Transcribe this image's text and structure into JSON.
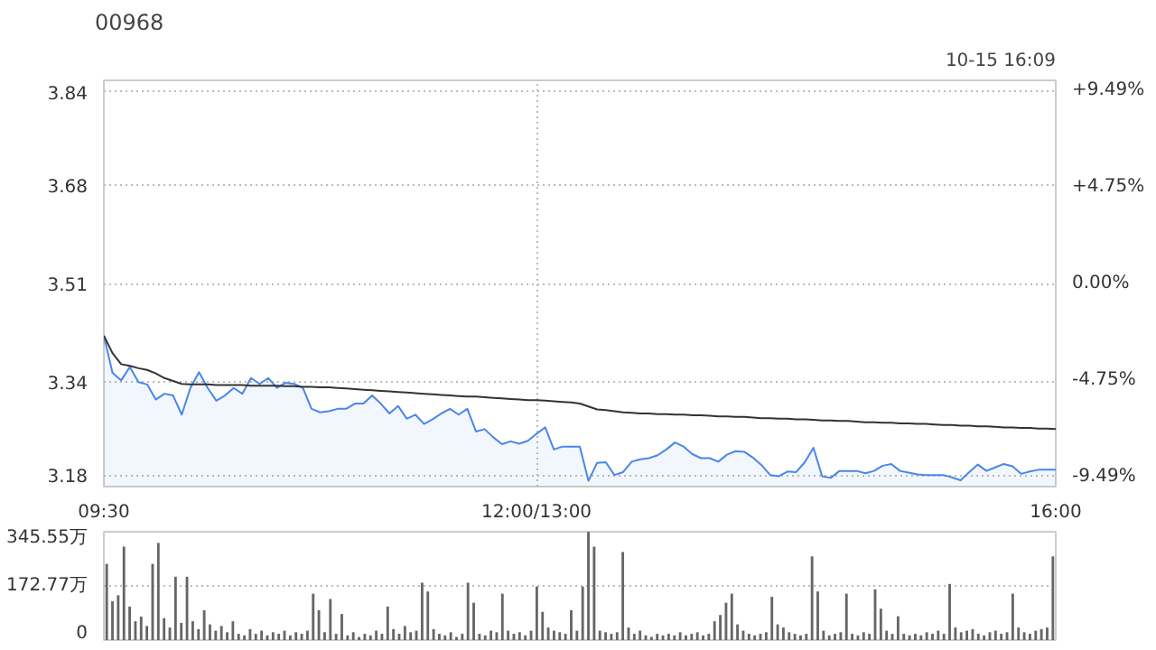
{
  "chart_data": [
    {
      "type": "line",
      "title": "00968",
      "annotations": [
        "10-15 16:09"
      ],
      "categories": [
        "09:30",
        null,
        null,
        null,
        null,
        null,
        null,
        null,
        null,
        null,
        null,
        null,
        null,
        null,
        null,
        null,
        null,
        null,
        null,
        null,
        null,
        null,
        null,
        null,
        null,
        null,
        null,
        null,
        null,
        null,
        null,
        null,
        null,
        null,
        null,
        null,
        null,
        null,
        null,
        null,
        null,
        null,
        null,
        null,
        null,
        null,
        null,
        null,
        null,
        null,
        "12:00/13:00",
        null,
        null,
        null,
        null,
        null,
        null,
        null,
        null,
        null,
        null,
        null,
        null,
        null,
        null,
        null,
        null,
        null,
        null,
        null,
        null,
        null,
        null,
        null,
        null,
        null,
        null,
        null,
        null,
        null,
        null,
        null,
        null,
        null,
        null,
        null,
        null,
        null,
        null,
        null,
        null,
        null,
        null,
        null,
        null,
        null,
        null,
        null,
        null,
        null,
        null,
        null,
        null,
        null,
        null,
        null,
        null,
        null,
        null,
        null,
        "16:00"
      ],
      "ylim": [
        3.16,
        3.86
      ],
      "yticks": [
        3.18,
        3.34,
        3.51,
        3.68,
        3.84
      ],
      "y2lim": [
        -9.97,
        9.97
      ],
      "y2ticks": [
        {
          "value": -9.49,
          "label": "-9.49%"
        },
        {
          "value": -4.75,
          "label": "-4.75%"
        },
        {
          "value": 0,
          "label": "0.00%"
        },
        {
          "value": 4.75,
          "label": "+4.75%"
        },
        {
          "value": 9.49,
          "label": "+9.49%"
        }
      ],
      "grid": true,
      "line_style": "solid",
      "series": [
        {
          "type": "area",
          "color": "#4a86e8",
          "values": [
            3.42,
            3.356,
            3.343,
            3.366,
            3.34,
            3.336,
            3.31,
            3.32,
            3.317,
            3.284,
            3.33,
            3.357,
            3.33,
            3.308,
            3.317,
            3.33,
            3.32,
            3.347,
            3.337,
            3.347,
            3.33,
            3.339,
            3.337,
            3.33,
            3.294,
            3.288,
            3.29,
            3.294,
            3.294,
            3.303,
            3.303,
            3.317,
            3.303,
            3.286,
            3.299,
            3.277,
            3.284,
            3.268,
            3.276,
            3.286,
            3.294,
            3.284,
            3.294,
            3.255,
            3.259,
            3.245,
            3.233,
            3.238,
            3.234,
            3.239,
            3.251,
            3.262,
            3.224,
            3.229,
            3.229,
            3.229,
            3.17,
            3.201,
            3.202,
            3.18,
            3.185,
            3.203,
            3.207,
            3.209,
            3.214,
            3.224,
            3.236,
            3.229,
            3.216,
            3.209,
            3.209,
            3.203,
            3.215,
            3.221,
            3.22,
            3.21,
            3.197,
            3.18,
            3.178,
            3.186,
            3.185,
            3.202,
            3.227,
            3.178,
            3.175,
            3.187,
            3.187,
            3.187,
            3.183,
            3.187,
            3.196,
            3.199,
            3.187,
            3.184,
            3.181,
            3.18,
            3.18,
            3.18,
            3.176,
            3.171,
            3.185,
            3.198,
            3.187,
            3.193,
            3.199,
            3.195,
            3.182,
            3.186,
            3.189,
            3.189,
            3.189
          ]
        },
        {
          "type": "line",
          "color": "#333333",
          "values": [
            3.42,
            3.39,
            3.371,
            3.368,
            3.364,
            3.361,
            3.355,
            3.347,
            3.342,
            3.337,
            3.336,
            3.336,
            3.336,
            3.335,
            3.335,
            3.335,
            3.335,
            3.334,
            3.334,
            3.334,
            3.334,
            3.333,
            3.333,
            3.332,
            3.332,
            3.331,
            3.331,
            3.33,
            3.329,
            3.328,
            3.327,
            3.326,
            3.325,
            3.324,
            3.323,
            3.322,
            3.321,
            3.32,
            3.319,
            3.318,
            3.317,
            3.316,
            3.315,
            3.315,
            3.314,
            3.313,
            3.312,
            3.311,
            3.31,
            3.309,
            3.309,
            3.308,
            3.307,
            3.306,
            3.305,
            3.303,
            3.298,
            3.293,
            3.292,
            3.29,
            3.288,
            3.287,
            3.286,
            3.286,
            3.285,
            3.285,
            3.284,
            3.284,
            3.283,
            3.283,
            3.282,
            3.281,
            3.281,
            3.28,
            3.28,
            3.279,
            3.278,
            3.278,
            3.277,
            3.277,
            3.276,
            3.276,
            3.275,
            3.274,
            3.274,
            3.273,
            3.273,
            3.272,
            3.271,
            3.271,
            3.27,
            3.27,
            3.269,
            3.269,
            3.268,
            3.268,
            3.267,
            3.266,
            3.266,
            3.265,
            3.265,
            3.264,
            3.264,
            3.263,
            3.262,
            3.262,
            3.261,
            3.261,
            3.26,
            3.26,
            3.259
          ]
        }
      ]
    },
    {
      "type": "bar",
      "tick_labels": "y",
      "grid": "y",
      "color": "#666666",
      "ylim": [
        0,
        345.55
      ],
      "yticks": [
        0,
        {
          "value": 172.77,
          "label": "172.77万"
        },
        {
          "value": 345.55,
          "label": "345.55万"
        }
      ],
      "categories": [
        null,
        null,
        null,
        null,
        null,
        null,
        null,
        null,
        null,
        null,
        null,
        null,
        null,
        null,
        null,
        null,
        null,
        null,
        null,
        null,
        null,
        null,
        null,
        null,
        null,
        null,
        null,
        null,
        null,
        null,
        null,
        null,
        null,
        null,
        null,
        null,
        null,
        null,
        null,
        null,
        null,
        null,
        null,
        null,
        null,
        null,
        null,
        null,
        null,
        null,
        null,
        null,
        null,
        null,
        null,
        null,
        null,
        null,
        null,
        null,
        null,
        null,
        null,
        null,
        null,
        null,
        null,
        null,
        null,
        null,
        null,
        null,
        null,
        null,
        null,
        null,
        null,
        null,
        null,
        null,
        null,
        null,
        null,
        null,
        null,
        null,
        null,
        null,
        null,
        null,
        null,
        null,
        null,
        null,
        null,
        null,
        null,
        null,
        null,
        null,
        null,
        null,
        null,
        null,
        null,
        null,
        null,
        null,
        null,
        null,
        null,
        null,
        null,
        null,
        null,
        null,
        null,
        null,
        null,
        null,
        null,
        null,
        null,
        null,
        null,
        null,
        null,
        null,
        null,
        null,
        null,
        null,
        null,
        null,
        null,
        null,
        null,
        null,
        null,
        null,
        null,
        null,
        null,
        null,
        null,
        null,
        null,
        null,
        null,
        null,
        null,
        null,
        null,
        null,
        null,
        null,
        null,
        null,
        null,
        null,
        null,
        null,
        null,
        null,
        null,
        null
      ],
      "values": [
        243,
        124,
        143,
        298,
        107,
        60,
        75,
        45,
        243,
        310,
        70,
        40,
        202,
        55,
        202,
        60,
        35,
        95,
        50,
        30,
        45,
        25,
        60,
        20,
        15,
        35,
        20,
        30,
        15,
        25,
        20,
        30,
        15,
        25,
        20,
        30,
        148,
        95,
        25,
        131,
        20,
        83,
        15,
        25,
        10,
        20,
        15,
        30,
        20,
        107,
        35,
        20,
        45,
        25,
        30,
        183,
        155,
        35,
        20,
        15,
        25,
        10,
        20,
        183,
        119,
        20,
        15,
        30,
        25,
        148,
        30,
        20,
        25,
        15,
        30,
        171,
        90,
        40,
        30,
        25,
        20,
        95,
        30,
        171,
        345,
        298,
        30,
        25,
        20,
        25,
        281,
        40,
        20,
        30,
        15,
        10,
        20,
        15,
        20,
        15,
        25,
        15,
        20,
        25,
        15,
        20,
        60,
        80,
        119,
        148,
        50,
        30,
        20,
        15,
        20,
        25,
        138,
        50,
        40,
        25,
        20,
        15,
        20,
        267,
        155,
        30,
        15,
        20,
        25,
        148,
        20,
        15,
        25,
        20,
        162,
        100,
        30,
        20,
        76,
        20,
        15,
        20,
        15,
        25,
        20,
        30,
        20,
        179,
        40,
        25,
        30,
        35,
        20,
        15,
        25,
        30,
        20,
        25,
        148,
        40,
        25,
        20,
        30,
        35,
        40,
        267
      ]
    }
  ]
}
